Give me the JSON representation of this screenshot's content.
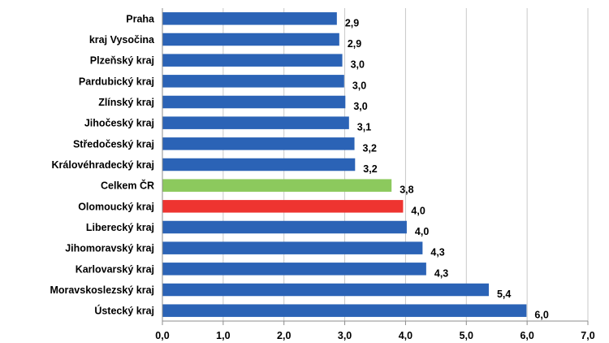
{
  "chart_data": {
    "type": "bar",
    "orientation": "horizontal",
    "title": "",
    "xlabel": "",
    "ylabel": "",
    "xlim": [
      0,
      7
    ],
    "x_ticks": [
      "0,0",
      "1,0",
      "2,0",
      "3,0",
      "4,0",
      "5,0",
      "6,0",
      "7,0"
    ],
    "grid": true,
    "categories": [
      "Praha",
      "kraj Vysočina",
      "Plzeňský kraj",
      "Pardubický kraj",
      "Zlínský kraj",
      "Jihočeský kraj",
      "Středočeský kraj",
      "Královéhradecký kraj",
      "Celkem ČR",
      "Olomoucký kraj",
      "Liberecký kraj",
      "Jihomoravský kraj",
      "Karlovarský kraj",
      "Moravskoslezský kraj",
      "Ústecký kraj"
    ],
    "values": [
      2.87,
      2.91,
      2.96,
      2.99,
      3.01,
      3.07,
      3.16,
      3.17,
      3.77,
      3.96,
      4.02,
      4.28,
      4.34,
      5.37,
      5.99
    ],
    "value_labels": [
      "2,9",
      "2,9",
      "3,0",
      "3,0",
      "3,0",
      "3,1",
      "3,2",
      "3,2",
      "3,8",
      "4,0",
      "4,0",
      "4,3",
      "4,3",
      "5,4",
      "6,0"
    ],
    "bar_colors": [
      "#2b63b6",
      "#2b63b6",
      "#2b63b6",
      "#2b63b6",
      "#2b63b6",
      "#2b63b6",
      "#2b63b6",
      "#2b63b6",
      "#8cc95d",
      "#ee3430",
      "#2b63b6",
      "#2b63b6",
      "#2b63b6",
      "#2b63b6",
      "#2b63b6"
    ]
  }
}
